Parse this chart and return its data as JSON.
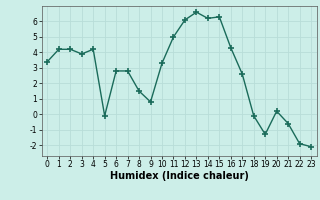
{
  "x": [
    0,
    1,
    2,
    3,
    4,
    5,
    6,
    7,
    8,
    9,
    10,
    11,
    12,
    13,
    14,
    15,
    16,
    17,
    18,
    19,
    20,
    21,
    22,
    23
  ],
  "y": [
    3.4,
    4.2,
    4.2,
    3.9,
    4.2,
    -0.1,
    2.8,
    2.8,
    1.5,
    0.8,
    3.3,
    5.0,
    6.1,
    6.6,
    6.2,
    6.3,
    4.3,
    2.6,
    -0.1,
    -1.3,
    0.2,
    -0.6,
    -1.9,
    -2.1
  ],
  "xlabel": "Humidex (Indice chaleur)",
  "ylim": [
    -2.7,
    7.0
  ],
  "xlim": [
    -0.5,
    23.5
  ],
  "yticks": [
    -2,
    -1,
    0,
    1,
    2,
    3,
    4,
    5,
    6
  ],
  "xticks": [
    0,
    1,
    2,
    3,
    4,
    5,
    6,
    7,
    8,
    9,
    10,
    11,
    12,
    13,
    14,
    15,
    16,
    17,
    18,
    19,
    20,
    21,
    22,
    23
  ],
  "line_color": "#1a6b5a",
  "marker": "+",
  "marker_size": 4,
  "marker_lw": 1.2,
  "bg_color": "#cceee8",
  "grid_color": "#b8ddd8",
  "fig_bg": "#cceee8",
  "xlabel_fontsize": 7,
  "tick_fontsize": 5.5,
  "linewidth": 1.0
}
